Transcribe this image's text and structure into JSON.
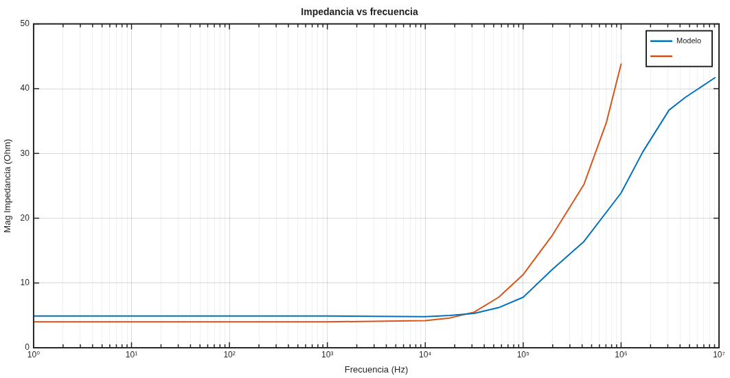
{
  "chart_data": {
    "type": "line",
    "title": "Impedancia vs frecuencia",
    "xlabel": "Frecuencia (Hz)",
    "ylabel": "Mag Impedancia (Ohm)",
    "log": "x",
    "grid": true,
    "legend": "top right",
    "marker": "none",
    "line_style": "solid",
    "xlim": [
      1,
      10000000
    ],
    "ylim": [
      0,
      50
    ],
    "xticks": [
      {
        "value": 1,
        "label": "10⁰"
      },
      {
        "value": 2,
        "label": null
      },
      {
        "value": 3,
        "label": null
      },
      {
        "value": 4,
        "label": null
      },
      {
        "value": 5,
        "label": null
      },
      {
        "value": 6,
        "label": null
      },
      {
        "value": 7,
        "label": null
      },
      {
        "value": 8,
        "label": null
      },
      {
        "value": 9,
        "label": null
      },
      {
        "value": 10,
        "label": "10¹"
      },
      {
        "value": 20,
        "label": null
      },
      {
        "value": 30,
        "label": null
      },
      {
        "value": 40,
        "label": null
      },
      {
        "value": 50,
        "label": null
      },
      {
        "value": 60,
        "label": null
      },
      {
        "value": 70,
        "label": null
      },
      {
        "value": 80,
        "label": null
      },
      {
        "value": 90,
        "label": null
      },
      {
        "value": 100,
        "label": "10²"
      },
      {
        "value": 200,
        "label": null
      },
      {
        "value": 300,
        "label": null
      },
      {
        "value": 400,
        "label": null
      },
      {
        "value": 500,
        "label": null
      },
      {
        "value": 600,
        "label": null
      },
      {
        "value": 700,
        "label": null
      },
      {
        "value": 800,
        "label": null
      },
      {
        "value": 900,
        "label": null
      },
      {
        "value": 1000,
        "label": "10³"
      },
      {
        "value": 2000,
        "label": null
      },
      {
        "value": 3000,
        "label": null
      },
      {
        "value": 4000,
        "label": null
      },
      {
        "value": 5000,
        "label": null
      },
      {
        "value": 6000,
        "label": null
      },
      {
        "value": 7000,
        "label": null
      },
      {
        "value": 8000,
        "label": null
      },
      {
        "value": 9000,
        "label": null
      },
      {
        "value": 10000,
        "label": "10⁴"
      },
      {
        "value": 20000,
        "label": null
      },
      {
        "value": 30000,
        "label": null
      },
      {
        "value": 40000,
        "label": null
      },
      {
        "value": 50000,
        "label": null
      },
      {
        "value": 60000,
        "label": null
      },
      {
        "value": 70000,
        "label": null
      },
      {
        "value": 80000,
        "label": null
      },
      {
        "value": 90000,
        "label": null
      },
      {
        "value": 100000,
        "label": "10⁵"
      },
      {
        "value": 200000,
        "label": null
      },
      {
        "value": 300000,
        "label": null
      },
      {
        "value": 400000,
        "label": null
      },
      {
        "value": 500000,
        "label": null
      },
      {
        "value": 600000,
        "label": null
      },
      {
        "value": 700000,
        "label": null
      },
      {
        "value": 800000,
        "label": null
      },
      {
        "value": 900000,
        "label": null
      },
      {
        "value": 1000000,
        "label": "10⁶"
      },
      {
        "value": 2000000,
        "label": null
      },
      {
        "value": 3000000,
        "label": null
      },
      {
        "value": 4000000,
        "label": null
      },
      {
        "value": 5000000,
        "label": null
      },
      {
        "value": 6000000,
        "label": null
      },
      {
        "value": 7000000,
        "label": null
      },
      {
        "value": 8000000,
        "label": null
      },
      {
        "value": 9000000,
        "label": null
      },
      {
        "value": 10000000,
        "label": "10⁷"
      }
    ],
    "yticks": [
      0,
      10,
      20,
      30,
      40,
      50
    ],
    "series": [
      {
        "name": "Modelo",
        "color": "#0072bd",
        "x": [
          1,
          1000,
          10000,
          17800,
          31600,
          56200,
          100000,
          195000,
          417000,
          1000000,
          1660000,
          3090000,
          4570000,
          9100000
        ],
        "values": [
          4.9,
          4.9,
          4.8,
          5.0,
          5.3,
          6.2,
          7.8,
          12.0,
          16.4,
          23.9,
          30.2,
          36.7,
          38.7,
          41.7
        ]
      },
      {
        "color": "#d95319",
        "x": [
          1,
          1000,
          10000,
          17800,
          31600,
          56200,
          100000,
          195000,
          417000,
          708000,
          1000000
        ],
        "values": [
          4.0,
          4.0,
          4.2,
          4.6,
          5.5,
          7.8,
          11.3,
          17.2,
          25.2,
          34.8,
          43.8
        ]
      }
    ]
  }
}
